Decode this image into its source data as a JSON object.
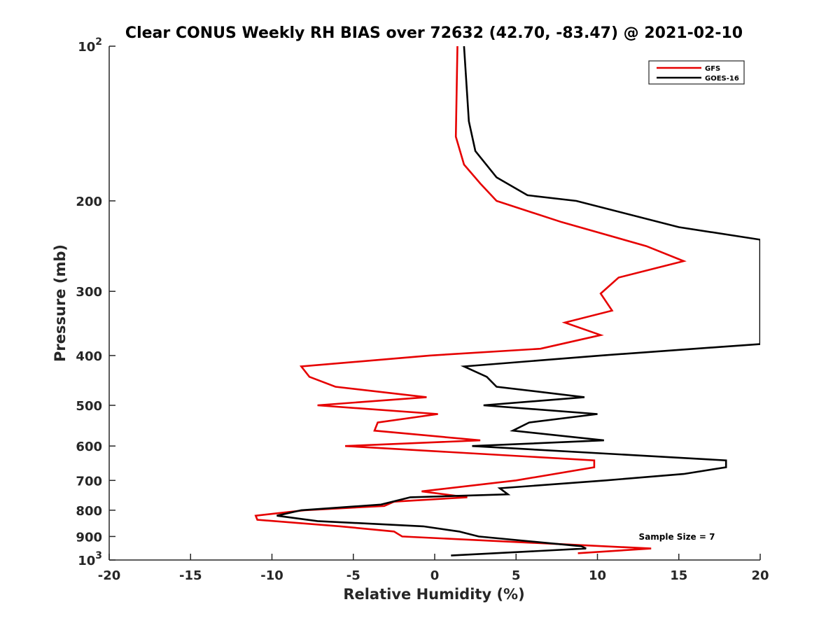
{
  "chart_data": {
    "type": "line",
    "title": "Clear CONUS Weekly RH BIAS over 72632 (42.70, -83.47) @ 2021-02-10",
    "xlabel": "Relative Humidity (%)",
    "ylabel": "Pressure (mb)",
    "xlim": [
      -20,
      20
    ],
    "ylim": [
      100,
      1000
    ],
    "yscale": "log",
    "y_reversed": true,
    "x_ticks": [
      -20,
      -15,
      -10,
      -5,
      0,
      5,
      10,
      15,
      20
    ],
    "x_tick_labels": [
      "-20",
      "-15",
      "-10",
      "-5",
      "0",
      "5",
      "10",
      "15",
      "20"
    ],
    "y_ticks": [
      100,
      200,
      300,
      400,
      500,
      600,
      700,
      800,
      900,
      1000
    ],
    "y_tick_labels": [
      {
        "base": "10",
        "exp": "2"
      },
      {
        "base": "200",
        "exp": ""
      },
      {
        "base": "300",
        "exp": ""
      },
      {
        "base": "400",
        "exp": ""
      },
      {
        "base": "500",
        "exp": ""
      },
      {
        "base": "600",
        "exp": ""
      },
      {
        "base": "700",
        "exp": ""
      },
      {
        "base": "800",
        "exp": ""
      },
      {
        "base": "900",
        "exp": ""
      },
      {
        "base": "10",
        "exp": "3"
      }
    ],
    "grid": false,
    "legend_position": "top-right",
    "annotation": "Sample Size = 7",
    "series": [
      {
        "name": "GFS",
        "color": "#e60000",
        "points": [
          [
            1.4,
            100
          ],
          [
            1.3,
            150
          ],
          [
            1.8,
            170
          ],
          [
            2.8,
            185
          ],
          [
            3.8,
            200
          ],
          [
            7.8,
            220
          ],
          [
            13.0,
            245
          ],
          [
            15.3,
            262
          ],
          [
            11.3,
            282
          ],
          [
            10.2,
            303
          ],
          [
            10.9,
            327
          ],
          [
            8.0,
            345
          ],
          [
            10.2,
            365
          ],
          [
            6.5,
            388
          ],
          [
            -0.3,
            400
          ],
          [
            -8.2,
            420
          ],
          [
            -7.7,
            440
          ],
          [
            -6.1,
            460
          ],
          [
            -0.5,
            482
          ],
          [
            -7.2,
            500
          ],
          [
            0.2,
            520
          ],
          [
            -3.5,
            540
          ],
          [
            -3.7,
            560
          ],
          [
            2.8,
            585
          ],
          [
            -5.5,
            600
          ],
          [
            9.8,
            640
          ],
          [
            9.8,
            660
          ],
          [
            5.0,
            700
          ],
          [
            -0.8,
            735
          ],
          [
            2.0,
            755
          ],
          [
            -2.5,
            770
          ],
          [
            -3.1,
            785
          ],
          [
            -8.0,
            800
          ],
          [
            -11.0,
            820
          ],
          [
            -10.9,
            835
          ],
          [
            -5.8,
            860
          ],
          [
            -2.5,
            880
          ],
          [
            -2.0,
            900
          ],
          [
            13.3,
            950
          ],
          [
            8.8,
            970
          ]
        ]
      },
      {
        "name": "GOES-16",
        "color": "#000000",
        "points": [
          [
            1.8,
            100
          ],
          [
            2.1,
            140
          ],
          [
            2.5,
            160
          ],
          [
            3.8,
            180
          ],
          [
            5.7,
            195
          ],
          [
            8.7,
            200
          ],
          [
            15.0,
            225
          ],
          [
            20.0,
            238
          ],
          [
            20.0,
            380
          ],
          [
            17.5,
            385
          ],
          [
            10.2,
            400
          ],
          [
            1.8,
            420
          ],
          [
            3.2,
            440
          ],
          [
            3.8,
            460
          ],
          [
            9.2,
            482
          ],
          [
            3.0,
            500
          ],
          [
            10.0,
            520
          ],
          [
            5.8,
            540
          ],
          [
            4.8,
            560
          ],
          [
            10.4,
            585
          ],
          [
            2.3,
            600
          ],
          [
            17.9,
            640
          ],
          [
            17.9,
            660
          ],
          [
            15.3,
            680
          ],
          [
            10.5,
            700
          ],
          [
            4.0,
            725
          ],
          [
            4.5,
            745
          ],
          [
            -1.5,
            755
          ],
          [
            -3.3,
            780
          ],
          [
            -8.2,
            800
          ],
          [
            -9.7,
            820
          ],
          [
            -7.2,
            840
          ],
          [
            -0.7,
            860
          ],
          [
            1.5,
            880
          ],
          [
            2.7,
            900
          ],
          [
            9.0,
            940
          ],
          [
            9.3,
            950
          ],
          [
            1.0,
            980
          ]
        ]
      }
    ]
  }
}
